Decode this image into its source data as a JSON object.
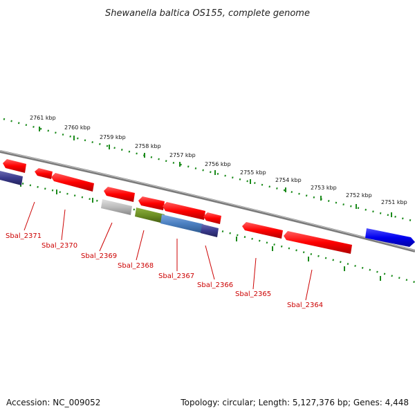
{
  "title": "Shewanella baltica OS155, complete genome",
  "footer": {
    "accession": "Accession: NC_009052",
    "summary": "Topology: circular; Length: 5,127,376 bp; Genes: 4,448"
  },
  "colors": {
    "backbone": "#888888",
    "ruler": "#1a8a1a",
    "gene_red": "#ff0000",
    "gene_blue": "#0000ee",
    "gene_navy": "#3a3a8c",
    "gene_grey": "#bbbbbb",
    "gene_olive": "#6b8e23",
    "gene_steel": "#4a7fc0",
    "label": "#cc0000"
  },
  "ruler_labels": [
    "2761 kbp",
    "2760 kbp",
    "2759 kbp",
    "2758 kbp",
    "2757 kbp",
    "2756 kbp",
    "2755 kbp",
    "2754 kbp",
    "2753 kbp",
    "2752 kbp",
    "2751 kbp"
  ],
  "gene_labels": [
    "Sbal_2371",
    "Sbal_2370",
    "Sbal_2369",
    "Sbal_2368",
    "Sbal_2367",
    "Sbal_2366",
    "Sbal_2365",
    "Sbal_2364"
  ]
}
